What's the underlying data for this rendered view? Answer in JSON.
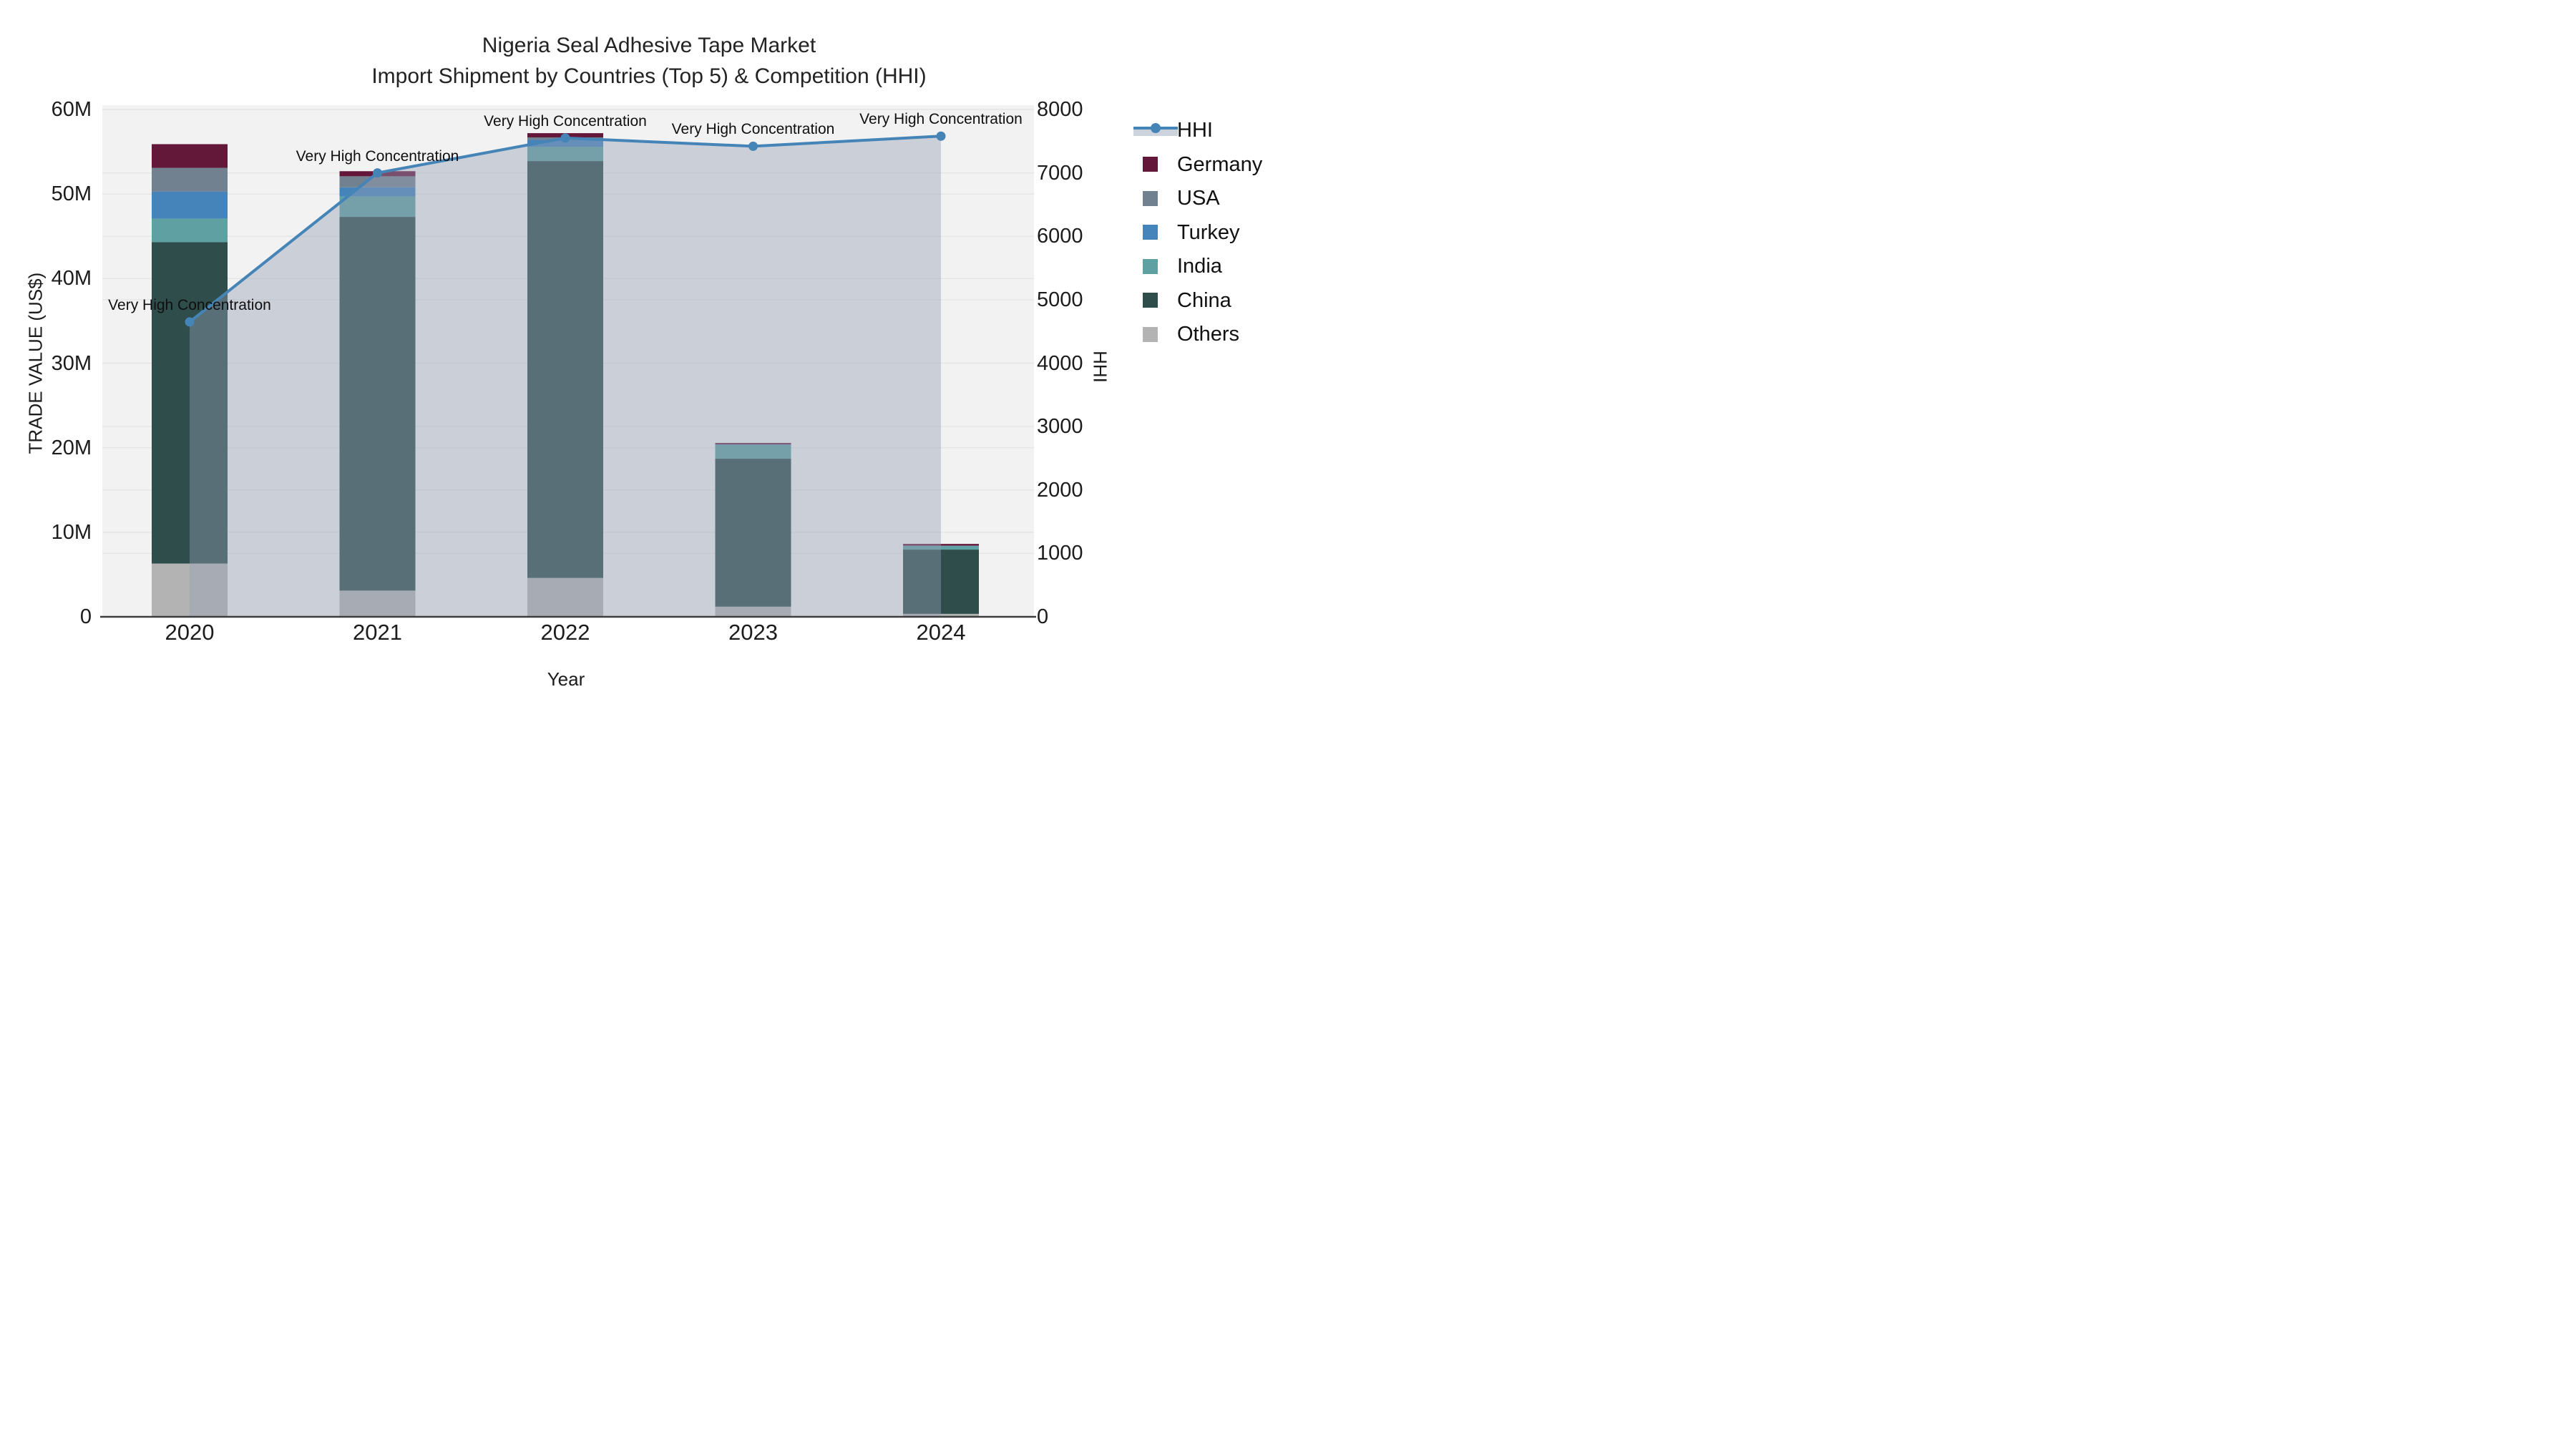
{
  "title": {
    "line1": "Nigeria Seal Adhesive Tape Market",
    "line2": "Import Shipment by Countries (Top 5) & Competition (HHI)"
  },
  "axes": {
    "left": {
      "title": "TRADE VALUE (US$)",
      "ticks": [
        "60M",
        "50M",
        "40M",
        "30M",
        "20M",
        "10M",
        "0"
      ]
    },
    "right": {
      "title": "HHI",
      "ticks": [
        "8000",
        "7000",
        "6000",
        "5000",
        "4000",
        "3000",
        "2000",
        "1000",
        "0"
      ]
    },
    "x": {
      "title": "Year",
      "categories": [
        "2020",
        "2021",
        "2022",
        "2023",
        "2024"
      ]
    }
  },
  "legend": {
    "items": [
      {
        "label": "HHI",
        "type": "line",
        "color": "#4584b7"
      },
      {
        "label": "Germany",
        "type": "square",
        "color": "#641839"
      },
      {
        "label": "USA",
        "type": "square",
        "color": "#72818f"
      },
      {
        "label": "Turkey",
        "type": "square",
        "color": "#4484ba"
      },
      {
        "label": "India",
        "type": "square",
        "color": "#5fa1a3"
      },
      {
        "label": "China",
        "type": "square",
        "color": "#2e4d4b"
      },
      {
        "label": "Others",
        "type": "square",
        "color": "#b3b3b3"
      }
    ]
  },
  "annotation_text": "Very High Concentration",
  "colors": {
    "plot_bg": "#f3f2f2",
    "gridline": "#e4e4e4",
    "axis_line": "#3d3d3d",
    "hhi_line": "#4584b7",
    "hhi_area_fill": "rgba(148,160,180,0.42)"
  },
  "chart_data": {
    "type": "bar+line",
    "title": "Nigeria Seal Adhesive Tape Market — Import Shipment by Countries (Top 5) & Competition (HHI)",
    "categories": [
      "2020",
      "2021",
      "2022",
      "2023",
      "2024"
    ],
    "bar_unit": "million US$",
    "bar_stack_order_bottom_to_top": [
      "Others",
      "China",
      "India",
      "Turkey",
      "USA",
      "Germany"
    ],
    "bar_series": [
      {
        "name": "Others",
        "color": "#b3b3b3",
        "values": [
          6.3,
          3.1,
          4.6,
          1.2,
          0.35
        ]
      },
      {
        "name": "China",
        "color": "#2e4d4b",
        "values": [
          38.0,
          44.2,
          49.3,
          17.5,
          7.6
        ]
      },
      {
        "name": "India",
        "color": "#5fa1a3",
        "values": [
          2.8,
          2.4,
          1.7,
          1.6,
          0.4
        ]
      },
      {
        "name": "Turkey",
        "color": "#4484ba",
        "values": [
          3.2,
          1.1,
          0.8,
          0.05,
          0.04
        ]
      },
      {
        "name": "USA",
        "color": "#72818f",
        "values": [
          2.8,
          1.3,
          0.3,
          0.06,
          0.03
        ]
      },
      {
        "name": "Germany",
        "color": "#641839",
        "values": [
          2.8,
          0.6,
          0.5,
          0.15,
          0.2
        ]
      }
    ],
    "line_series": {
      "name": "HHI",
      "color": "#4584b7",
      "axis": "right",
      "values": [
        4650,
        7000,
        7550,
        7420,
        7580
      ]
    },
    "annotations": [
      {
        "x": "2020",
        "text": "Very High Concentration"
      },
      {
        "x": "2021",
        "text": "Very High Concentration"
      },
      {
        "x": "2022",
        "text": "Very High Concentration"
      },
      {
        "x": "2023",
        "text": "Very High Concentration"
      },
      {
        "x": "2024",
        "text": "Very High Concentration"
      }
    ],
    "xlabel": "Year",
    "ylabel_left": "TRADE VALUE (US$)",
    "ylabel_right": "HHI",
    "ylim_left": [
      0,
      60000000
    ],
    "ylim_right": [
      0,
      8000
    ],
    "grid": true,
    "legend_position": "right"
  }
}
